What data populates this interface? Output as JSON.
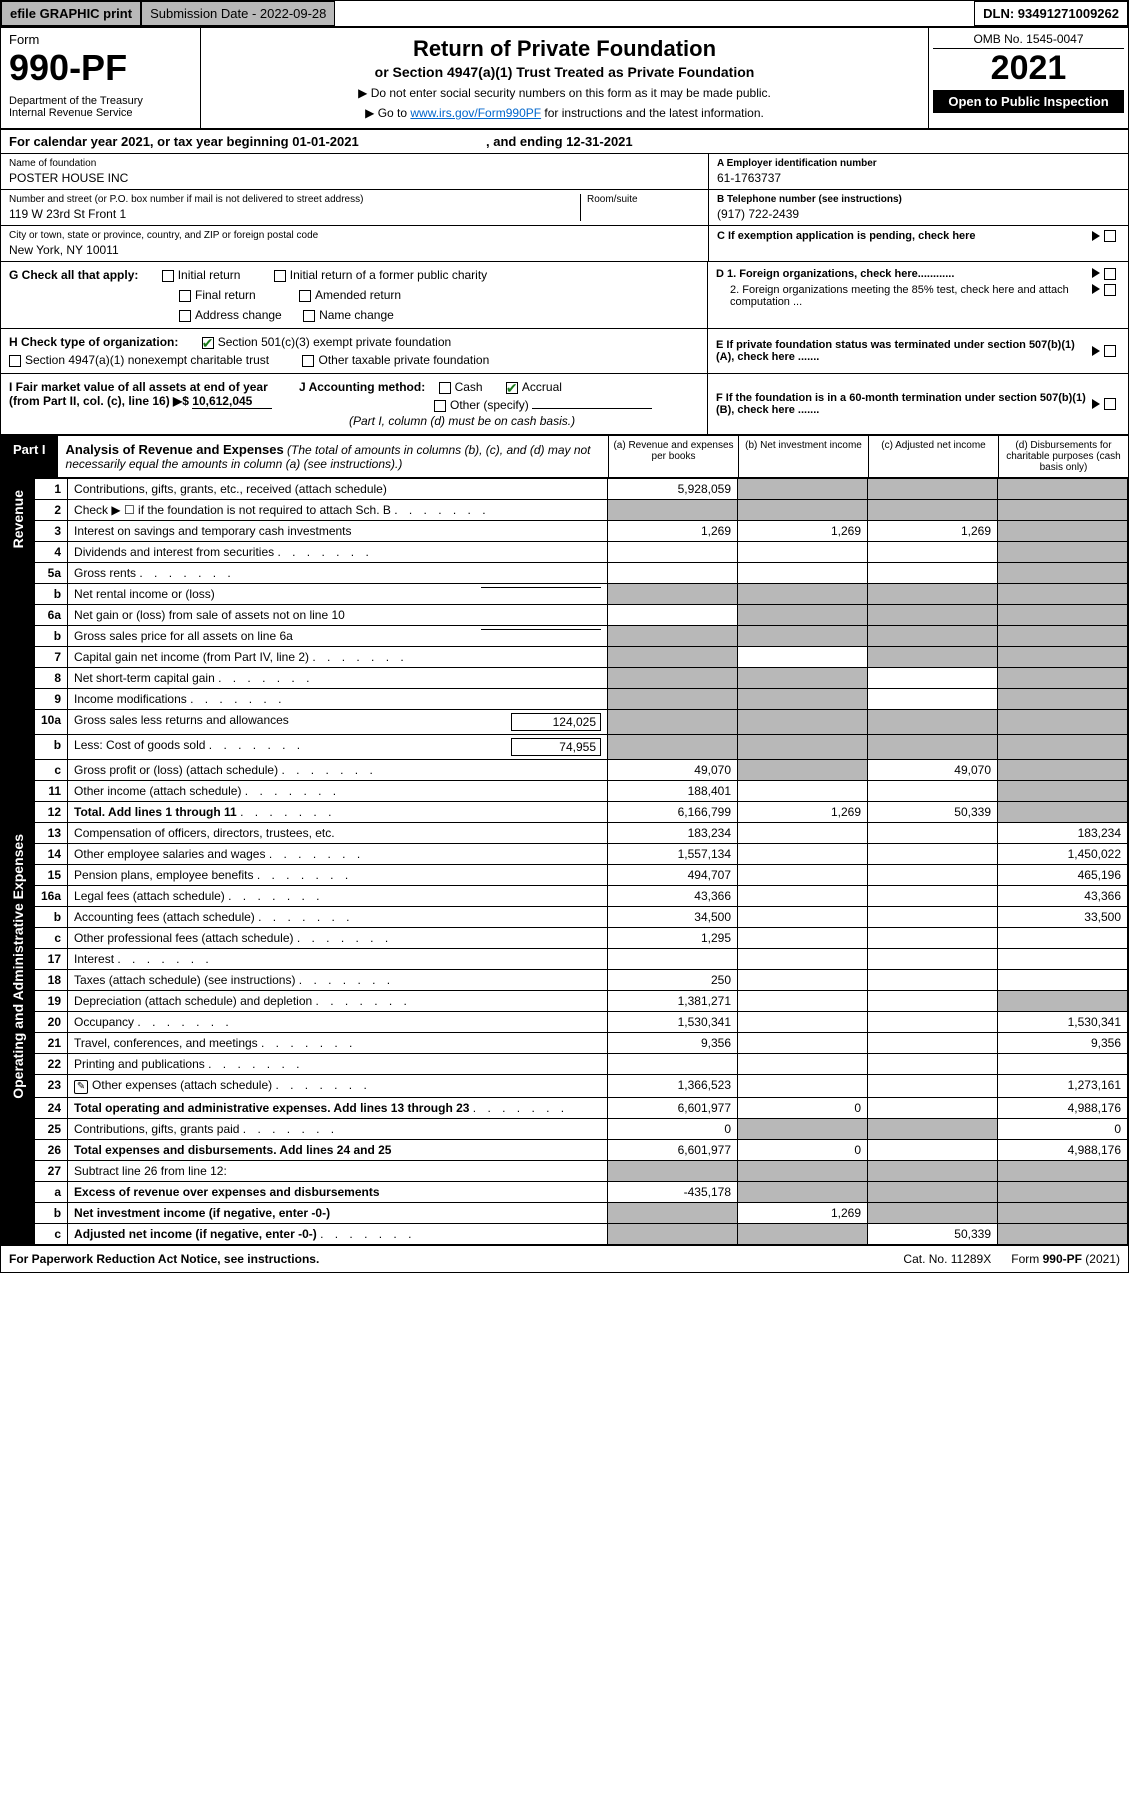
{
  "topbar": {
    "efile": "efile GRAPHIC print",
    "submission_label": "Submission Date - 2022-09-28",
    "dln": "DLN: 93491271009262"
  },
  "header": {
    "form_label": "Form",
    "form_number": "990-PF",
    "dept": "Department of the Treasury\nInternal Revenue Service",
    "title": "Return of Private Foundation",
    "subtitle": "or Section 4947(a)(1) Trust Treated as Private Foundation",
    "note1": "▶ Do not enter social security numbers on this form as it may be made public.",
    "note2_prefix": "▶ Go to ",
    "note2_link": "www.irs.gov/Form990PF",
    "note2_suffix": " for instructions and the latest information.",
    "omb": "OMB No. 1545-0047",
    "year": "2021",
    "open": "Open to Public Inspection"
  },
  "cal": {
    "text_a": "For calendar year 2021, or tax year beginning 01-01-2021",
    "text_b": ", and ending 12-31-2021"
  },
  "info": {
    "name_label": "Name of foundation",
    "name": "POSTER HOUSE INC",
    "addr_label": "Number and street (or P.O. box number if mail is not delivered to street address)",
    "addr": "119 W 23rd St Front 1",
    "room_label": "Room/suite",
    "city_label": "City or town, state or province, country, and ZIP or foreign postal code",
    "city": "New York, NY  10011",
    "ein_label": "A Employer identification number",
    "ein": "61-1763737",
    "phone_label": "B Telephone number (see instructions)",
    "phone": "(917) 722-2439",
    "c_label": "C If exemption application is pending, check here",
    "d1_label": "D 1. Foreign organizations, check here............",
    "d2_label": "2. Foreign organizations meeting the 85% test, check here and attach computation ...",
    "e_label": "E  If private foundation status was terminated under section 507(b)(1)(A), check here .......",
    "f_label": "F  If the foundation is in a 60-month termination under section 507(b)(1)(B), check here ......."
  },
  "g": {
    "label": "G Check all that apply:",
    "opts": [
      "Initial return",
      "Final return",
      "Address change",
      "Initial return of a former public charity",
      "Amended return",
      "Name change"
    ]
  },
  "h": {
    "label": "H Check type of organization:",
    "opt1": "Section 501(c)(3) exempt private foundation",
    "opt2": "Section 4947(a)(1) nonexempt charitable trust",
    "opt3": "Other taxable private foundation"
  },
  "i": {
    "label": "I Fair market value of all assets at end of year (from Part II, col. (c), line 16) ▶$ ",
    "value": "10,612,045"
  },
  "j": {
    "label": "J Accounting method:",
    "cash": "Cash",
    "accrual": "Accrual",
    "other": "Other (specify)",
    "note": "(Part I, column (d) must be on cash basis.)"
  },
  "part1": {
    "tag": "Part I",
    "title": "Analysis of Revenue and Expenses",
    "note": " (The total of amounts in columns (b), (c), and (d) may not necessarily equal the amounts in column (a) (see instructions).)",
    "col_a": "(a) Revenue and expenses per books",
    "col_b": "(b) Net investment income",
    "col_c": "(c) Adjusted net income",
    "col_d": "(d) Disbursements for charitable purposes (cash basis only)"
  },
  "side": {
    "revenue": "Revenue",
    "expenses": "Operating and Administrative Expenses"
  },
  "lines": [
    {
      "n": "1",
      "d": "Contributions, gifts, grants, etc., received (attach schedule)",
      "a": "5,928,059",
      "b": "_g",
      "c": "_g",
      "dd": "_g"
    },
    {
      "n": "2",
      "d": "Check ▶ ☐ if the foundation is not required to attach Sch. B",
      "dots": true,
      "a": "_g",
      "b": "_g",
      "c": "_g",
      "dd": "_g"
    },
    {
      "n": "3",
      "d": "Interest on savings and temporary cash investments",
      "a": "1,269",
      "b": "1,269",
      "c": "1,269",
      "dd": "_g"
    },
    {
      "n": "4",
      "d": "Dividends and interest from securities",
      "dots": true,
      "a": "",
      "b": "",
      "c": "",
      "dd": "_g"
    },
    {
      "n": "5a",
      "d": "Gross rents",
      "dots": true,
      "a": "",
      "b": "",
      "c": "",
      "dd": "_g"
    },
    {
      "n": "b",
      "d": "Net rental income or (loss)",
      "box": true,
      "a": "_g",
      "b": "_g",
      "c": "_g",
      "dd": "_g"
    },
    {
      "n": "6a",
      "d": "Net gain or (loss) from sale of assets not on line 10",
      "a": "",
      "b": "_g",
      "c": "_g",
      "dd": "_g"
    },
    {
      "n": "b",
      "d": "Gross sales price for all assets on line 6a",
      "box": true,
      "a": "_g",
      "b": "_g",
      "c": "_g",
      "dd": "_g"
    },
    {
      "n": "7",
      "d": "Capital gain net income (from Part IV, line 2)",
      "dots": true,
      "a": "_g",
      "b": "",
      "c": "_g",
      "dd": "_g"
    },
    {
      "n": "8",
      "d": "Net short-term capital gain",
      "dots": true,
      "a": "_g",
      "b": "_g",
      "c": "",
      "dd": "_g"
    },
    {
      "n": "9",
      "d": "Income modifications",
      "dots": true,
      "a": "_g",
      "b": "_g",
      "c": "",
      "dd": "_g"
    },
    {
      "n": "10a",
      "d": "Gross sales less returns and allowances",
      "boxval": "124,025",
      "a": "_g",
      "b": "_g",
      "c": "_g",
      "dd": "_g"
    },
    {
      "n": "b",
      "d": "Less: Cost of goods sold",
      "dots": true,
      "boxval": "74,955",
      "a": "_g",
      "b": "_g",
      "c": "_g",
      "dd": "_g"
    },
    {
      "n": "c",
      "d": "Gross profit or (loss) (attach schedule)",
      "dots": true,
      "a": "49,070",
      "b": "_g",
      "c": "49,070",
      "dd": "_g"
    },
    {
      "n": "11",
      "d": "Other income (attach schedule)",
      "dots": true,
      "a": "188,401",
      "b": "",
      "c": "",
      "dd": "_g"
    },
    {
      "n": "12",
      "d": "Total. Add lines 1 through 11",
      "dots": true,
      "bold": true,
      "a": "6,166,799",
      "b": "1,269",
      "c": "50,339",
      "dd": "_g"
    },
    {
      "n": "13",
      "d": "Compensation of officers, directors, trustees, etc.",
      "a": "183,234",
      "b": "",
      "c": "",
      "dd": "183,234"
    },
    {
      "n": "14",
      "d": "Other employee salaries and wages",
      "dots": true,
      "a": "1,557,134",
      "b": "",
      "c": "",
      "dd": "1,450,022"
    },
    {
      "n": "15",
      "d": "Pension plans, employee benefits",
      "dots": true,
      "a": "494,707",
      "b": "",
      "c": "",
      "dd": "465,196"
    },
    {
      "n": "16a",
      "d": "Legal fees (attach schedule)",
      "dots": true,
      "a": "43,366",
      "b": "",
      "c": "",
      "dd": "43,366"
    },
    {
      "n": "b",
      "d": "Accounting fees (attach schedule)",
      "dots": true,
      "a": "34,500",
      "b": "",
      "c": "",
      "dd": "33,500"
    },
    {
      "n": "c",
      "d": "Other professional fees (attach schedule)",
      "dots": true,
      "a": "1,295",
      "b": "",
      "c": "",
      "dd": ""
    },
    {
      "n": "17",
      "d": "Interest",
      "dots": true,
      "a": "",
      "b": "",
      "c": "",
      "dd": ""
    },
    {
      "n": "18",
      "d": "Taxes (attach schedule) (see instructions)",
      "dots": true,
      "a": "250",
      "b": "",
      "c": "",
      "dd": ""
    },
    {
      "n": "19",
      "d": "Depreciation (attach schedule) and depletion",
      "dots": true,
      "a": "1,381,271",
      "b": "",
      "c": "",
      "dd": "_g"
    },
    {
      "n": "20",
      "d": "Occupancy",
      "dots": true,
      "a": "1,530,341",
      "b": "",
      "c": "",
      "dd": "1,530,341"
    },
    {
      "n": "21",
      "d": "Travel, conferences, and meetings",
      "dots": true,
      "a": "9,356",
      "b": "",
      "c": "",
      "dd": "9,356"
    },
    {
      "n": "22",
      "d": "Printing and publications",
      "dots": true,
      "a": "",
      "b": "",
      "c": "",
      "dd": ""
    },
    {
      "n": "23",
      "d": "Other expenses (attach schedule)",
      "dots": true,
      "icon": true,
      "a": "1,366,523",
      "b": "",
      "c": "",
      "dd": "1,273,161"
    },
    {
      "n": "24",
      "d": "Total operating and administrative expenses. Add lines 13 through 23",
      "dots": true,
      "bold": true,
      "a": "6,601,977",
      "b": "0",
      "c": "",
      "dd": "4,988,176"
    },
    {
      "n": "25",
      "d": "Contributions, gifts, grants paid",
      "dots": true,
      "a": "0",
      "b": "_g",
      "c": "_g",
      "dd": "0"
    },
    {
      "n": "26",
      "d": "Total expenses and disbursements. Add lines 24 and 25",
      "bold": true,
      "a": "6,601,977",
      "b": "0",
      "c": "",
      "dd": "4,988,176"
    },
    {
      "n": "27",
      "d": "Subtract line 26 from line 12:",
      "a": "_g",
      "b": "_g",
      "c": "_g",
      "dd": "_g"
    },
    {
      "n": "a",
      "d": "Excess of revenue over expenses and disbursements",
      "bold": true,
      "a": "-435,178",
      "b": "_g",
      "c": "_g",
      "dd": "_g"
    },
    {
      "n": "b",
      "d": "Net investment income (if negative, enter -0-)",
      "bold": true,
      "a": "_g",
      "b": "1,269",
      "c": "_g",
      "dd": "_g"
    },
    {
      "n": "c",
      "d": "Adjusted net income (if negative, enter -0-)",
      "dots": true,
      "bold": true,
      "a": "_g",
      "b": "_g",
      "c": "50,339",
      "dd": "_g"
    }
  ],
  "footer": {
    "left": "For Paperwork Reduction Act Notice, see instructions.",
    "cat": "Cat. No. 11289X",
    "form": "Form 990-PF (2021)"
  },
  "colors": {
    "grey": "#b8b8b8",
    "black": "#000000",
    "link": "#0066cc",
    "check": "#1a7a1a"
  }
}
